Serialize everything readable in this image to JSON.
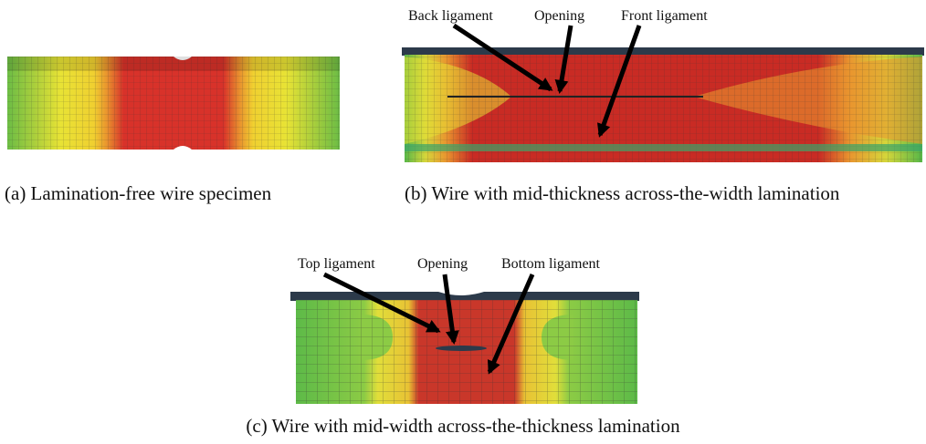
{
  "panels": [
    {
      "caption": "(a) Lamination-free wire specimen"
    },
    {
      "caption": "(b) Wire with mid-thickness across-the-width lamination",
      "labels": [
        "Back ligament",
        "Opening",
        "Front ligament"
      ]
    },
    {
      "caption": "(c) Wire with mid-width across-the-thickness lamination",
      "labels": [
        "Top ligament",
        "Opening",
        "Bottom ligament"
      ]
    }
  ]
}
